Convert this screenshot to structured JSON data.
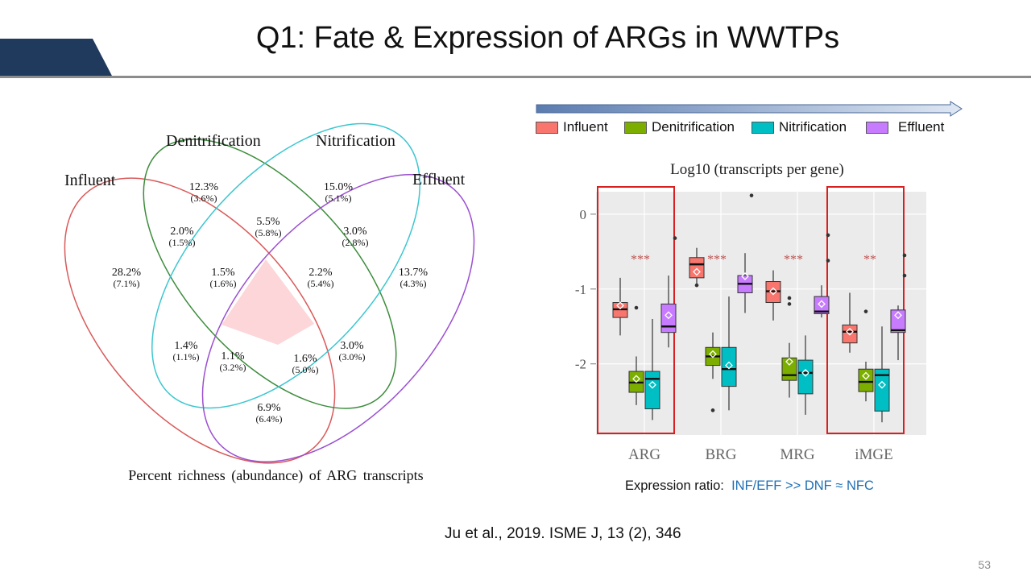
{
  "slide": {
    "title": "Q1: Fate & Expression of ARGs in WWTPs",
    "page_number": "53",
    "citation": "Ju et al., 2019. ISME J, 13 (2), 346"
  },
  "colors": {
    "title_tab": "#1f3a5c",
    "influent": "#f8766d",
    "denitrification": "#7cae00",
    "nitrification": "#00bfc4",
    "effluent": "#c77cff",
    "venn_influent": "#d95a5a",
    "venn_denitrification": "#3c8c3c",
    "venn_nitrification": "#3cc6d0",
    "venn_effluent": "#9b4fd0",
    "venn_core_fill": "#fcd6d8",
    "sig_stars": "#c0504d",
    "highlight_box": "#d92020",
    "plot_bg": "#ebebeb"
  },
  "venn": {
    "set_labels": {
      "influent": "Influent",
      "denitrification": "Denitrification",
      "nitrification": "Nitrification",
      "effluent": "Effluent"
    },
    "regions": [
      {
        "id": "inf_only",
        "value": "28.2%",
        "sub": "(7.1%)"
      },
      {
        "id": "den_only",
        "value": "12.3%",
        "sub": "(3.6%)"
      },
      {
        "id": "nit_only",
        "value": "15.0%",
        "sub": "(5.1%)"
      },
      {
        "id": "eff_only",
        "value": "13.7%",
        "sub": "(4.3%)"
      },
      {
        "id": "inf_den",
        "value": "2.0%",
        "sub": "(1.5%)"
      },
      {
        "id": "den_nit",
        "value": "5.5%",
        "sub": "(5.8%)"
      },
      {
        "id": "nit_eff",
        "value": "3.0%",
        "sub": "(2.8%)"
      },
      {
        "id": "inf_den_nit",
        "value": "1.5%",
        "sub": "(1.6%)"
      },
      {
        "id": "den_nit_eff",
        "value": "2.2%",
        "sub": "(5.4%)"
      },
      {
        "id": "inf_nit",
        "value": "1.4%",
        "sub": "(1.1%)"
      },
      {
        "id": "den_eff",
        "value": "3.0%",
        "sub": "(3.0%)"
      },
      {
        "id": "inf_nit_eff",
        "value": "1.1%",
        "sub": "(3.2%)"
      },
      {
        "id": "inf_den_eff",
        "value": "1.6%",
        "sub": "(5.0%)"
      },
      {
        "id": "inf_eff",
        "value": "6.9%",
        "sub": "(6.4%)"
      }
    ],
    "caption": "Percent richness (abundance) of ARG transcripts"
  },
  "chart_data": {
    "type": "box",
    "title": "Log10 (transcripts per gene)",
    "categories": [
      "ARG",
      "BRG",
      "MRG",
      "iMGE"
    ],
    "legend": [
      "Influent",
      "Denitrification",
      "Nitrification",
      "Effluent"
    ],
    "legend_position": "top",
    "y_ticks": [
      0,
      -1,
      -2
    ],
    "y_tick_labels": [
      "0",
      "-1",
      "-2"
    ],
    "ylim": [
      -2.95,
      0.3
    ],
    "grid": true,
    "significance": [
      "***",
      "***",
      "***",
      "**"
    ],
    "highlighted_categories": [
      "ARG",
      "iMGE"
    ],
    "boxes": [
      {
        "category": "ARG",
        "series": "Influent",
        "whisker_low": -1.62,
        "q1": -1.38,
        "median": -1.27,
        "q3": -1.18,
        "whisker_high": -0.85,
        "mean": -1.22,
        "outliers": [
          -1.25
        ]
      },
      {
        "category": "ARG",
        "series": "Denitrification",
        "whisker_low": -2.55,
        "q1": -2.38,
        "median": -2.25,
        "q3": -2.1,
        "whisker_high": -1.9,
        "mean": -2.2,
        "outliers": []
      },
      {
        "category": "ARG",
        "series": "Nitrification",
        "whisker_low": -2.75,
        "q1": -2.6,
        "median": -2.2,
        "q3": -2.1,
        "whisker_high": -1.4,
        "mean": -2.28,
        "outliers": []
      },
      {
        "category": "ARG",
        "series": "Effluent",
        "whisker_low": -1.78,
        "q1": -1.58,
        "median": -1.5,
        "q3": -1.2,
        "whisker_high": -0.82,
        "mean": -1.35,
        "outliers": [
          -0.32
        ]
      },
      {
        "category": "BRG",
        "series": "Influent",
        "whisker_low": -0.95,
        "q1": -0.85,
        "median": -0.67,
        "q3": -0.58,
        "whisker_high": -0.45,
        "mean": -0.77,
        "outliers": [
          -0.95
        ]
      },
      {
        "category": "BRG",
        "series": "Denitrification",
        "whisker_low": -2.2,
        "q1": -2.02,
        "median": -1.9,
        "q3": -1.78,
        "whisker_high": -1.58,
        "mean": -1.87,
        "outliers": [
          -2.62
        ]
      },
      {
        "category": "BRG",
        "series": "Nitrification",
        "whisker_low": -2.62,
        "q1": -2.3,
        "median": -2.07,
        "q3": -1.78,
        "whisker_high": -1.1,
        "mean": -2.02,
        "outliers": []
      },
      {
        "category": "BRG",
        "series": "Effluent",
        "whisker_low": -1.32,
        "q1": -1.05,
        "median": -0.93,
        "q3": -0.82,
        "whisker_high": -0.52,
        "mean": -0.83,
        "outliers": [
          0.25
        ]
      },
      {
        "category": "MRG",
        "series": "Influent",
        "whisker_low": -1.42,
        "q1": -1.18,
        "median": -1.03,
        "q3": -0.9,
        "whisker_high": -0.75,
        "mean": -1.03,
        "outliers": [
          -1.12,
          -1.2
        ]
      },
      {
        "category": "MRG",
        "series": "Denitrification",
        "whisker_low": -2.45,
        "q1": -2.22,
        "median": -2.15,
        "q3": -1.92,
        "whisker_high": -1.72,
        "mean": -1.97,
        "outliers": []
      },
      {
        "category": "MRG",
        "series": "Nitrification",
        "whisker_low": -2.68,
        "q1": -2.4,
        "median": -2.12,
        "q3": -1.95,
        "whisker_high": -1.62,
        "mean": -2.12,
        "outliers": []
      },
      {
        "category": "MRG",
        "series": "Effluent",
        "whisker_low": -1.38,
        "q1": -1.33,
        "median": -1.3,
        "q3": -1.1,
        "whisker_high": -0.95,
        "mean": -1.2,
        "outliers": [
          -0.62,
          -0.28
        ]
      },
      {
        "category": "iMGE",
        "series": "Influent",
        "whisker_low": -1.85,
        "q1": -1.72,
        "median": -1.57,
        "q3": -1.48,
        "whisker_high": -1.05,
        "mean": -1.57,
        "outliers": []
      },
      {
        "category": "iMGE",
        "series": "Denitrification",
        "whisker_low": -2.5,
        "q1": -2.37,
        "median": -2.24,
        "q3": -2.07,
        "whisker_high": -1.97,
        "mean": -2.16,
        "outliers": [
          -1.3
        ]
      },
      {
        "category": "iMGE",
        "series": "Nitrification",
        "whisker_low": -2.78,
        "q1": -2.63,
        "median": -2.15,
        "q3": -2.07,
        "whisker_high": -1.5,
        "mean": -2.28,
        "outliers": []
      },
      {
        "category": "iMGE",
        "series": "Effluent",
        "whisker_low": -1.95,
        "q1": -1.58,
        "median": -1.55,
        "q3": -1.28,
        "whisker_high": -1.22,
        "mean": -1.35,
        "outliers": [
          -0.55,
          -0.82
        ]
      }
    ]
  },
  "expression": {
    "prefix": "Expression ratio:",
    "highlight": "INF/EFF >> DNF ≈ NFC"
  }
}
